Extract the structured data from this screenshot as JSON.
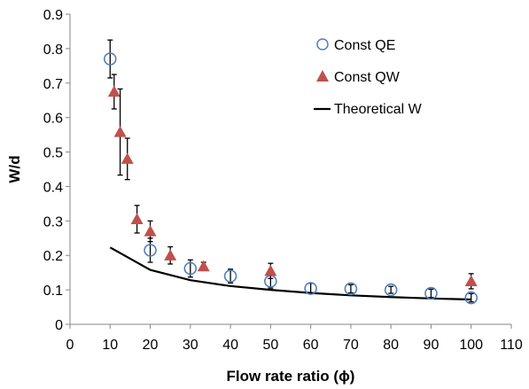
{
  "chart_data": {
    "type": "scatter",
    "xlabel": "Flow rate ratio (ϕ)",
    "ylabel": "W/d",
    "xlim": [
      0,
      110
    ],
    "ylim": [
      0,
      0.9
    ],
    "x_ticks": [
      0,
      10,
      20,
      30,
      40,
      50,
      60,
      70,
      80,
      90,
      100,
      110
    ],
    "y_ticks": [
      0,
      0.1,
      0.2,
      0.3,
      0.4,
      0.5,
      0.6,
      0.7,
      0.8,
      0.9
    ],
    "grid": false,
    "legend_position": "top-right",
    "series": [
      {
        "name": "Const QE",
        "marker": "open-circle",
        "color": "#4F81BD",
        "x": [
          10,
          20,
          30,
          40,
          50,
          60,
          70,
          80,
          90,
          100
        ],
        "y": [
          0.77,
          0.215,
          0.162,
          0.14,
          0.125,
          0.104,
          0.103,
          0.1,
          0.09,
          0.077
        ],
        "err": [
          0.055,
          0.035,
          0.025,
          0.02,
          0.02,
          0.015,
          0.012,
          0.01,
          0.012,
          0.012
        ]
      },
      {
        "name": "Const QW",
        "marker": "filled-triangle",
        "color": "#C0504D",
        "x": [
          11,
          12.5,
          14.3,
          16.7,
          20,
          25,
          33.3,
          50,
          100
        ],
        "y": [
          0.675,
          0.558,
          0.48,
          0.305,
          0.27,
          0.2,
          0.168,
          0.155,
          0.125
        ],
        "err": [
          0.05,
          0.125,
          0.06,
          0.04,
          0.03,
          0.025,
          0.012,
          0.022,
          0.022
        ]
      },
      {
        "name": "Theoretical W",
        "marker": "line",
        "color": "#000000",
        "x": [
          10,
          20,
          30,
          40,
          50,
          60,
          70,
          80,
          90,
          100
        ],
        "y": [
          0.223,
          0.158,
          0.128,
          0.111,
          0.1,
          0.091,
          0.084,
          0.079,
          0.075,
          0.072
        ]
      }
    ]
  }
}
